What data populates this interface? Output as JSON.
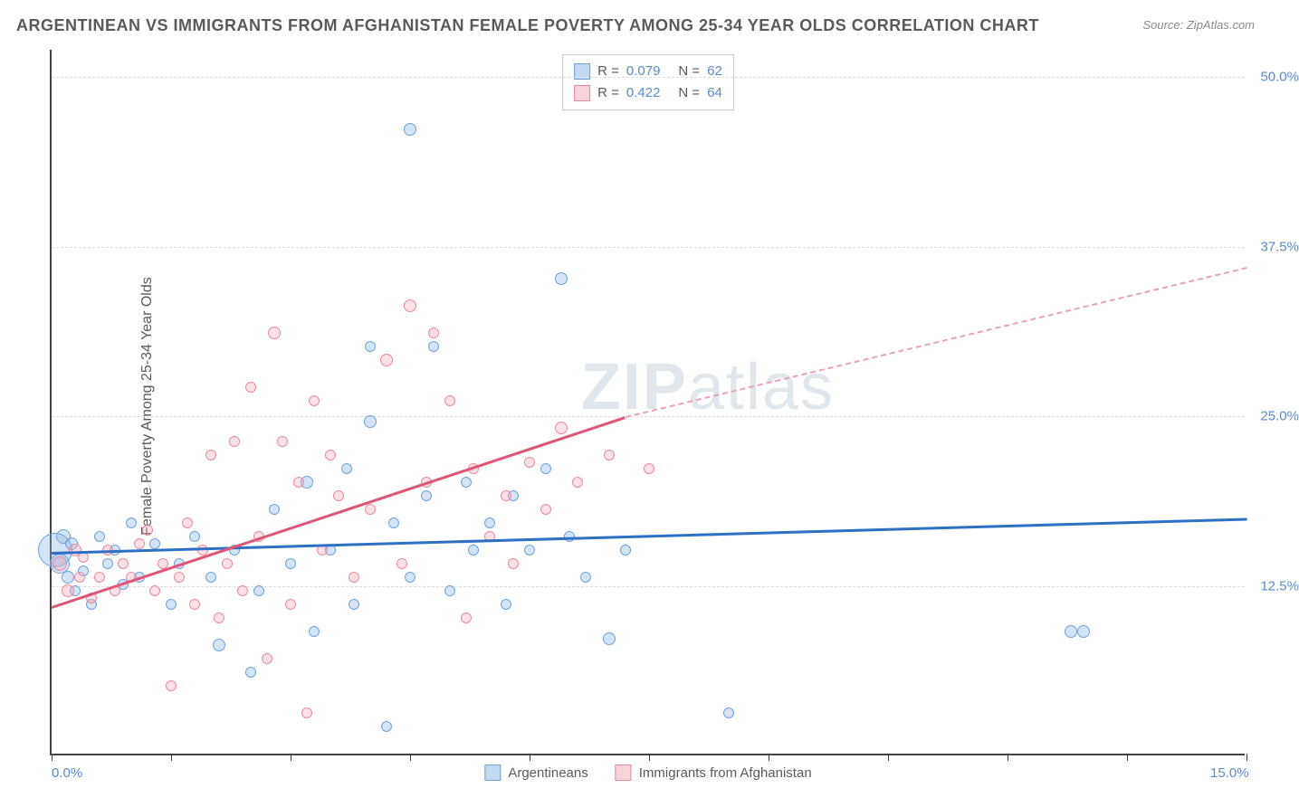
{
  "title": "ARGENTINEAN VS IMMIGRANTS FROM AFGHANISTAN FEMALE POVERTY AMONG 25-34 YEAR OLDS CORRELATION CHART",
  "source": "Source: ZipAtlas.com",
  "watermark_bold": "ZIP",
  "watermark_light": "atlas",
  "y_axis_title": "Female Poverty Among 25-34 Year Olds",
  "chart": {
    "type": "scatter",
    "background_color": "#ffffff",
    "grid_color": "#dddddd",
    "axis_color": "#444444",
    "text_color": "#5a5a5a",
    "label_color": "#5b8bc9",
    "xlim": [
      0,
      15
    ],
    "ylim": [
      0,
      52
    ],
    "x_ticks": [
      0,
      1.5,
      3,
      4.5,
      6,
      7.5,
      9,
      10.5,
      12,
      13.5,
      15
    ],
    "x_labels": [
      {
        "v": 0,
        "t": "0.0%"
      },
      {
        "v": 15,
        "t": "15.0%"
      }
    ],
    "y_gridlines": [
      12.5,
      25.0,
      37.5,
      50.0
    ],
    "y_labels": [
      {
        "v": 12.5,
        "t": "12.5%"
      },
      {
        "v": 25.0,
        "t": "25.0%"
      },
      {
        "v": 37.5,
        "t": "37.5%"
      },
      {
        "v": 50.0,
        "t": "50.0%"
      }
    ],
    "series": [
      {
        "name": "Argentineans",
        "color_fill": "rgba(135,179,226,0.35)",
        "color_stroke": "#6fa3d8",
        "trend_color": "#2f6fc4",
        "r": "0.079",
        "n": "62",
        "trend": {
          "x1": 0,
          "y1": 15.0,
          "x2": 15,
          "y2": 17.5
        },
        "points": [
          {
            "x": 0.05,
            "y": 15,
            "s": 38
          },
          {
            "x": 0.1,
            "y": 14,
            "s": 22
          },
          {
            "x": 0.15,
            "y": 16,
            "s": 16
          },
          {
            "x": 0.2,
            "y": 13,
            "s": 14
          },
          {
            "x": 0.25,
            "y": 15.5,
            "s": 14
          },
          {
            "x": 0.3,
            "y": 12,
            "s": 12
          },
          {
            "x": 0.4,
            "y": 13.5,
            "s": 12
          },
          {
            "x": 0.5,
            "y": 11,
            "s": 12
          },
          {
            "x": 0.6,
            "y": 16,
            "s": 12
          },
          {
            "x": 0.7,
            "y": 14,
            "s": 12
          },
          {
            "x": 0.8,
            "y": 15,
            "s": 12
          },
          {
            "x": 0.9,
            "y": 12.5,
            "s": 12
          },
          {
            "x": 1.0,
            "y": 17,
            "s": 12
          },
          {
            "x": 1.1,
            "y": 13,
            "s": 12
          },
          {
            "x": 1.3,
            "y": 15.5,
            "s": 12
          },
          {
            "x": 1.5,
            "y": 11,
            "s": 12
          },
          {
            "x": 1.6,
            "y": 14,
            "s": 12
          },
          {
            "x": 1.8,
            "y": 16,
            "s": 12
          },
          {
            "x": 2.0,
            "y": 13,
            "s": 12
          },
          {
            "x": 2.1,
            "y": 8,
            "s": 14
          },
          {
            "x": 2.3,
            "y": 15,
            "s": 12
          },
          {
            "x": 2.5,
            "y": 6,
            "s": 12
          },
          {
            "x": 2.6,
            "y": 12,
            "s": 12
          },
          {
            "x": 2.8,
            "y": 18,
            "s": 12
          },
          {
            "x": 3.0,
            "y": 14,
            "s": 12
          },
          {
            "x": 3.2,
            "y": 20,
            "s": 14
          },
          {
            "x": 3.3,
            "y": 9,
            "s": 12
          },
          {
            "x": 3.5,
            "y": 15,
            "s": 12
          },
          {
            "x": 3.7,
            "y": 21,
            "s": 12
          },
          {
            "x": 3.8,
            "y": 11,
            "s": 12
          },
          {
            "x": 4.0,
            "y": 24.5,
            "s": 14
          },
          {
            "x": 4.0,
            "y": 30,
            "s": 12
          },
          {
            "x": 4.2,
            "y": 2,
            "s": 12
          },
          {
            "x": 4.3,
            "y": 17,
            "s": 12
          },
          {
            "x": 4.5,
            "y": 46,
            "s": 14
          },
          {
            "x": 4.5,
            "y": 13,
            "s": 12
          },
          {
            "x": 4.7,
            "y": 19,
            "s": 12
          },
          {
            "x": 4.8,
            "y": 30,
            "s": 12
          },
          {
            "x": 5.0,
            "y": 12,
            "s": 12
          },
          {
            "x": 5.2,
            "y": 20,
            "s": 12
          },
          {
            "x": 5.3,
            "y": 15,
            "s": 12
          },
          {
            "x": 5.5,
            "y": 17,
            "s": 12
          },
          {
            "x": 5.7,
            "y": 11,
            "s": 12
          },
          {
            "x": 5.8,
            "y": 19,
            "s": 12
          },
          {
            "x": 6.0,
            "y": 15,
            "s": 12
          },
          {
            "x": 6.2,
            "y": 21,
            "s": 12
          },
          {
            "x": 6.4,
            "y": 35,
            "s": 14
          },
          {
            "x": 6.5,
            "y": 16,
            "s": 12
          },
          {
            "x": 6.7,
            "y": 13,
            "s": 12
          },
          {
            "x": 7.0,
            "y": 8.5,
            "s": 14
          },
          {
            "x": 7.2,
            "y": 15,
            "s": 12
          },
          {
            "x": 8.5,
            "y": 3,
            "s": 12
          },
          {
            "x": 12.8,
            "y": 9,
            "s": 14
          },
          {
            "x": 12.95,
            "y": 9,
            "s": 14
          }
        ]
      },
      {
        "name": "Immigrants from Afghanistan",
        "color_fill": "rgba(244,168,184,0.35)",
        "color_stroke": "#e88ba0",
        "trend_color": "#e05577",
        "r": "0.422",
        "n": "64",
        "trend": {
          "x1": 0,
          "y1": 11.0,
          "x2": 7.2,
          "y2": 25.0
        },
        "trend_dash": {
          "x1": 7.2,
          "y1": 25.0,
          "x2": 15,
          "y2": 36.0
        },
        "points": [
          {
            "x": 0.1,
            "y": 14,
            "s": 16
          },
          {
            "x": 0.2,
            "y": 12,
            "s": 14
          },
          {
            "x": 0.3,
            "y": 15,
            "s": 14
          },
          {
            "x": 0.35,
            "y": 13,
            "s": 12
          },
          {
            "x": 0.4,
            "y": 14.5,
            "s": 12
          },
          {
            "x": 0.5,
            "y": 11.5,
            "s": 12
          },
          {
            "x": 0.6,
            "y": 13,
            "s": 12
          },
          {
            "x": 0.7,
            "y": 15,
            "s": 12
          },
          {
            "x": 0.8,
            "y": 12,
            "s": 12
          },
          {
            "x": 0.9,
            "y": 14,
            "s": 12
          },
          {
            "x": 1.0,
            "y": 13,
            "s": 12
          },
          {
            "x": 1.1,
            "y": 15.5,
            "s": 12
          },
          {
            "x": 1.2,
            "y": 16.5,
            "s": 12
          },
          {
            "x": 1.3,
            "y": 12,
            "s": 12
          },
          {
            "x": 1.4,
            "y": 14,
            "s": 12
          },
          {
            "x": 1.5,
            "y": 5,
            "s": 12
          },
          {
            "x": 1.6,
            "y": 13,
            "s": 12
          },
          {
            "x": 1.7,
            "y": 17,
            "s": 12
          },
          {
            "x": 1.8,
            "y": 11,
            "s": 12
          },
          {
            "x": 1.9,
            "y": 15,
            "s": 12
          },
          {
            "x": 2.0,
            "y": 22,
            "s": 12
          },
          {
            "x": 2.1,
            "y": 10,
            "s": 12
          },
          {
            "x": 2.2,
            "y": 14,
            "s": 12
          },
          {
            "x": 2.3,
            "y": 23,
            "s": 12
          },
          {
            "x": 2.4,
            "y": 12,
            "s": 12
          },
          {
            "x": 2.5,
            "y": 27,
            "s": 12
          },
          {
            "x": 2.6,
            "y": 16,
            "s": 12
          },
          {
            "x": 2.7,
            "y": 7,
            "s": 12
          },
          {
            "x": 2.8,
            "y": 31,
            "s": 14
          },
          {
            "x": 2.9,
            "y": 23,
            "s": 12
          },
          {
            "x": 3.0,
            "y": 11,
            "s": 12
          },
          {
            "x": 3.1,
            "y": 20,
            "s": 12
          },
          {
            "x": 3.2,
            "y": 3,
            "s": 12
          },
          {
            "x": 3.3,
            "y": 26,
            "s": 12
          },
          {
            "x": 3.4,
            "y": 15,
            "s": 12
          },
          {
            "x": 3.5,
            "y": 22,
            "s": 12
          },
          {
            "x": 3.6,
            "y": 19,
            "s": 12
          },
          {
            "x": 3.8,
            "y": 13,
            "s": 12
          },
          {
            "x": 4.0,
            "y": 18,
            "s": 12
          },
          {
            "x": 4.2,
            "y": 29,
            "s": 14
          },
          {
            "x": 4.4,
            "y": 14,
            "s": 12
          },
          {
            "x": 4.5,
            "y": 33,
            "s": 14
          },
          {
            "x": 4.7,
            "y": 20,
            "s": 12
          },
          {
            "x": 4.8,
            "y": 31,
            "s": 12
          },
          {
            "x": 5.0,
            "y": 26,
            "s": 12
          },
          {
            "x": 5.2,
            "y": 10,
            "s": 12
          },
          {
            "x": 5.3,
            "y": 21,
            "s": 12
          },
          {
            "x": 5.5,
            "y": 16,
            "s": 12
          },
          {
            "x": 5.7,
            "y": 19,
            "s": 12
          },
          {
            "x": 5.8,
            "y": 14,
            "s": 12
          },
          {
            "x": 6.0,
            "y": 21.5,
            "s": 12
          },
          {
            "x": 6.2,
            "y": 18,
            "s": 12
          },
          {
            "x": 6.4,
            "y": 24,
            "s": 14
          },
          {
            "x": 6.6,
            "y": 20,
            "s": 12
          },
          {
            "x": 7.0,
            "y": 22,
            "s": 12
          },
          {
            "x": 7.5,
            "y": 21,
            "s": 12
          }
        ]
      }
    ]
  },
  "legend_bottom": [
    {
      "swatch": "blue",
      "label": "Argentineans"
    },
    {
      "swatch": "pink",
      "label": "Immigrants from Afghanistan"
    }
  ]
}
